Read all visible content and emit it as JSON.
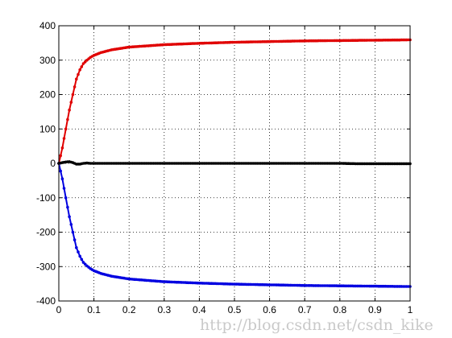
{
  "chart_data": {
    "type": "line",
    "title": "",
    "xlabel": "",
    "ylabel": "",
    "xlim": [
      0,
      1
    ],
    "ylim": [
      -400,
      400
    ],
    "grid": true,
    "x_ticks": [
      0,
      0.1,
      0.2,
      0.3,
      0.4,
      0.5,
      0.6,
      0.7,
      0.8,
      0.9,
      1
    ],
    "x_tick_labels": [
      "0",
      "0.1",
      "0.2",
      "0.3",
      "0.4",
      "0.5",
      "0.6",
      "0.7",
      "0.8",
      "0.9",
      "1"
    ],
    "y_ticks": [
      -400,
      -300,
      -200,
      -100,
      0,
      100,
      200,
      300,
      400
    ],
    "y_tick_labels": [
      "-400",
      "-300",
      "-200",
      "-100",
      "0",
      "100",
      "200",
      "300",
      "400"
    ],
    "series": [
      {
        "color": "#e00000",
        "x": [
          0,
          0.01,
          0.02,
          0.03,
          0.04,
          0.05,
          0.06,
          0.07,
          0.08,
          0.09,
          0.1,
          0.12,
          0.15,
          0.2,
          0.3,
          0.4,
          0.5,
          0.6,
          0.7,
          0.8,
          0.9,
          1.0
        ],
        "y": [
          0,
          45,
          100,
          155,
          200,
          245,
          272,
          290,
          300,
          308,
          314,
          322,
          330,
          338,
          345,
          349,
          352,
          354,
          356,
          357,
          358,
          359
        ]
      },
      {
        "color": "#0000e0",
        "x": [
          0,
          0.01,
          0.02,
          0.03,
          0.04,
          0.05,
          0.06,
          0.07,
          0.08,
          0.09,
          0.1,
          0.12,
          0.15,
          0.2,
          0.3,
          0.4,
          0.5,
          0.6,
          0.7,
          0.8,
          0.9,
          1.0
        ],
        "y": [
          0,
          -45,
          -100,
          -155,
          -200,
          -245,
          -270,
          -288,
          -298,
          -306,
          -312,
          -320,
          -328,
          -336,
          -344,
          -348,
          -351,
          -353,
          -355,
          -356,
          -357,
          -358
        ]
      },
      {
        "color": "#000000",
        "x": [
          0,
          0.01,
          0.02,
          0.03,
          0.04,
          0.05,
          0.06,
          0.07,
          0.08,
          0.09,
          0.1,
          0.2,
          0.3,
          0.4,
          0.5,
          0.6,
          0.7,
          0.8,
          0.85,
          0.9,
          1.0
        ],
        "y": [
          0,
          2,
          4,
          5,
          2,
          -2,
          -2,
          0,
          1,
          0,
          0,
          0,
          0,
          0,
          0,
          0,
          0,
          0,
          -1,
          -1,
          -1
        ]
      }
    ]
  },
  "watermark": "http://blog.csdn.net/csdn_kike"
}
